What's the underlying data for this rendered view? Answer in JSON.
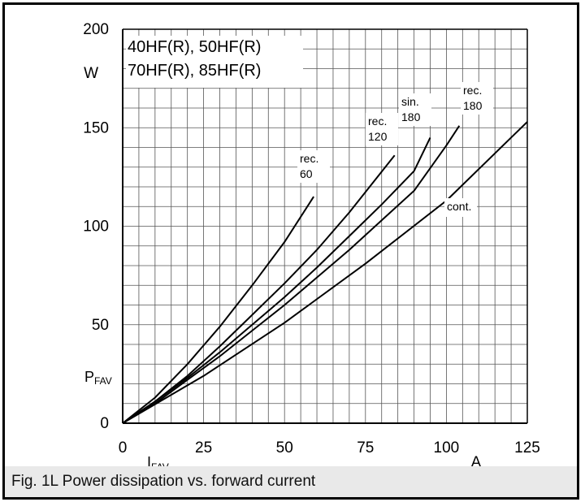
{
  "chart_data": {
    "type": "line",
    "title_lines": [
      "40HF(R), 50HF(R)",
      "70HF(R), 85HF(R)"
    ],
    "caption": "Fig. 1L Power dissipation vs. forward current",
    "xlabel": {
      "main": "I",
      "sub": "FAV"
    },
    "ylabel": {
      "main": "P",
      "sub": "FAV"
    },
    "x_unit": "A",
    "y_unit": "W",
    "xlim": [
      0,
      125
    ],
    "ylim": [
      0,
      200
    ],
    "x_ticks": [
      0,
      25,
      50,
      75,
      100,
      125
    ],
    "y_ticks": [
      0,
      50,
      100,
      150,
      200
    ],
    "grid": true,
    "series": [
      {
        "label_lines": [
          "rec.",
          "60"
        ],
        "x": [
          0,
          10,
          20,
          30,
          40,
          50,
          59
        ],
        "y": [
          0,
          13,
          30,
          49,
          70,
          92,
          115
        ]
      },
      {
        "label_lines": [
          "rec.",
          "120"
        ],
        "x": [
          0,
          10,
          20,
          30,
          40,
          50,
          60,
          70,
          84
        ],
        "y": [
          0,
          11,
          24,
          39,
          55,
          71,
          88,
          107,
          136
        ]
      },
      {
        "label_lines": [
          "sin.",
          "180"
        ],
        "x": [
          0,
          10,
          20,
          30,
          40,
          50,
          60,
          70,
          80,
          90,
          95
        ],
        "y": [
          0,
          11,
          23,
          36,
          50,
          64,
          79,
          95,
          111,
          128,
          145
        ]
      },
      {
        "label_lines": [
          "rec.",
          "180"
        ],
        "x": [
          0,
          10,
          20,
          30,
          40,
          50,
          60,
          70,
          80,
          90,
          100,
          104
        ],
        "y": [
          0,
          10,
          22,
          34,
          47,
          60,
          74,
          88,
          103,
          118,
          141,
          151
        ]
      },
      {
        "label_lines": [
          "cont."
        ],
        "x": [
          0,
          25,
          50,
          75,
          100,
          125
        ],
        "y": [
          0,
          24,
          51,
          81,
          113,
          153
        ]
      }
    ]
  }
}
